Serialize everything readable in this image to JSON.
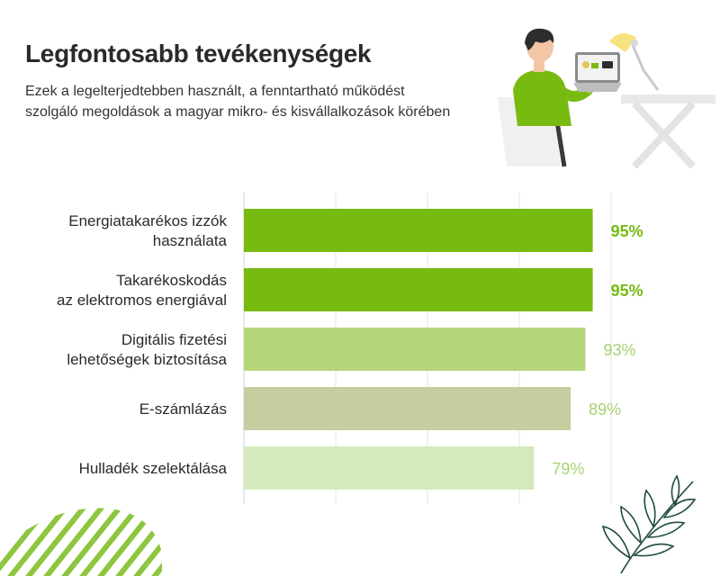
{
  "header": {
    "title": "Legfontosabb tevékenységek",
    "subtitle": "Ezek a legelterjedtebben használt, a fenntartható működést szolgáló megoldások a magyar mikro- és kisvállalkozások körében"
  },
  "illustration": {
    "icon": "person-at-laptop-icon"
  },
  "decor": {
    "stripes": "diagonal-stripes-icon",
    "plant": "leaf-branch-icon"
  },
  "chart_data": {
    "type": "bar",
    "orientation": "horizontal",
    "categories": [
      [
        "Energiatakarékos izzók",
        "használata"
      ],
      [
        "Takarékoskodás",
        "az elektromos energiával"
      ],
      [
        "Digitális fizetési",
        "lehetőségek biztosítása"
      ],
      [
        "E-számlázás"
      ],
      [
        "Hulladék szelektálása"
      ]
    ],
    "values": [
      95,
      95,
      93,
      89,
      79
    ],
    "value_labels": [
      "95%",
      "95%",
      "93%",
      "89%",
      "79%"
    ],
    "bar_colors": [
      "#77bb10",
      "#77bb10",
      "#b5d57a",
      "#c7cda0",
      "#d4eabd"
    ],
    "label_colors": [
      "#77bb10",
      "#77bb10",
      "#a6d170",
      "#a6d170",
      "#a6d170"
    ],
    "label_bold": [
      true,
      true,
      false,
      false,
      false
    ],
    "xlim": [
      0,
      100
    ],
    "grid": true
  }
}
